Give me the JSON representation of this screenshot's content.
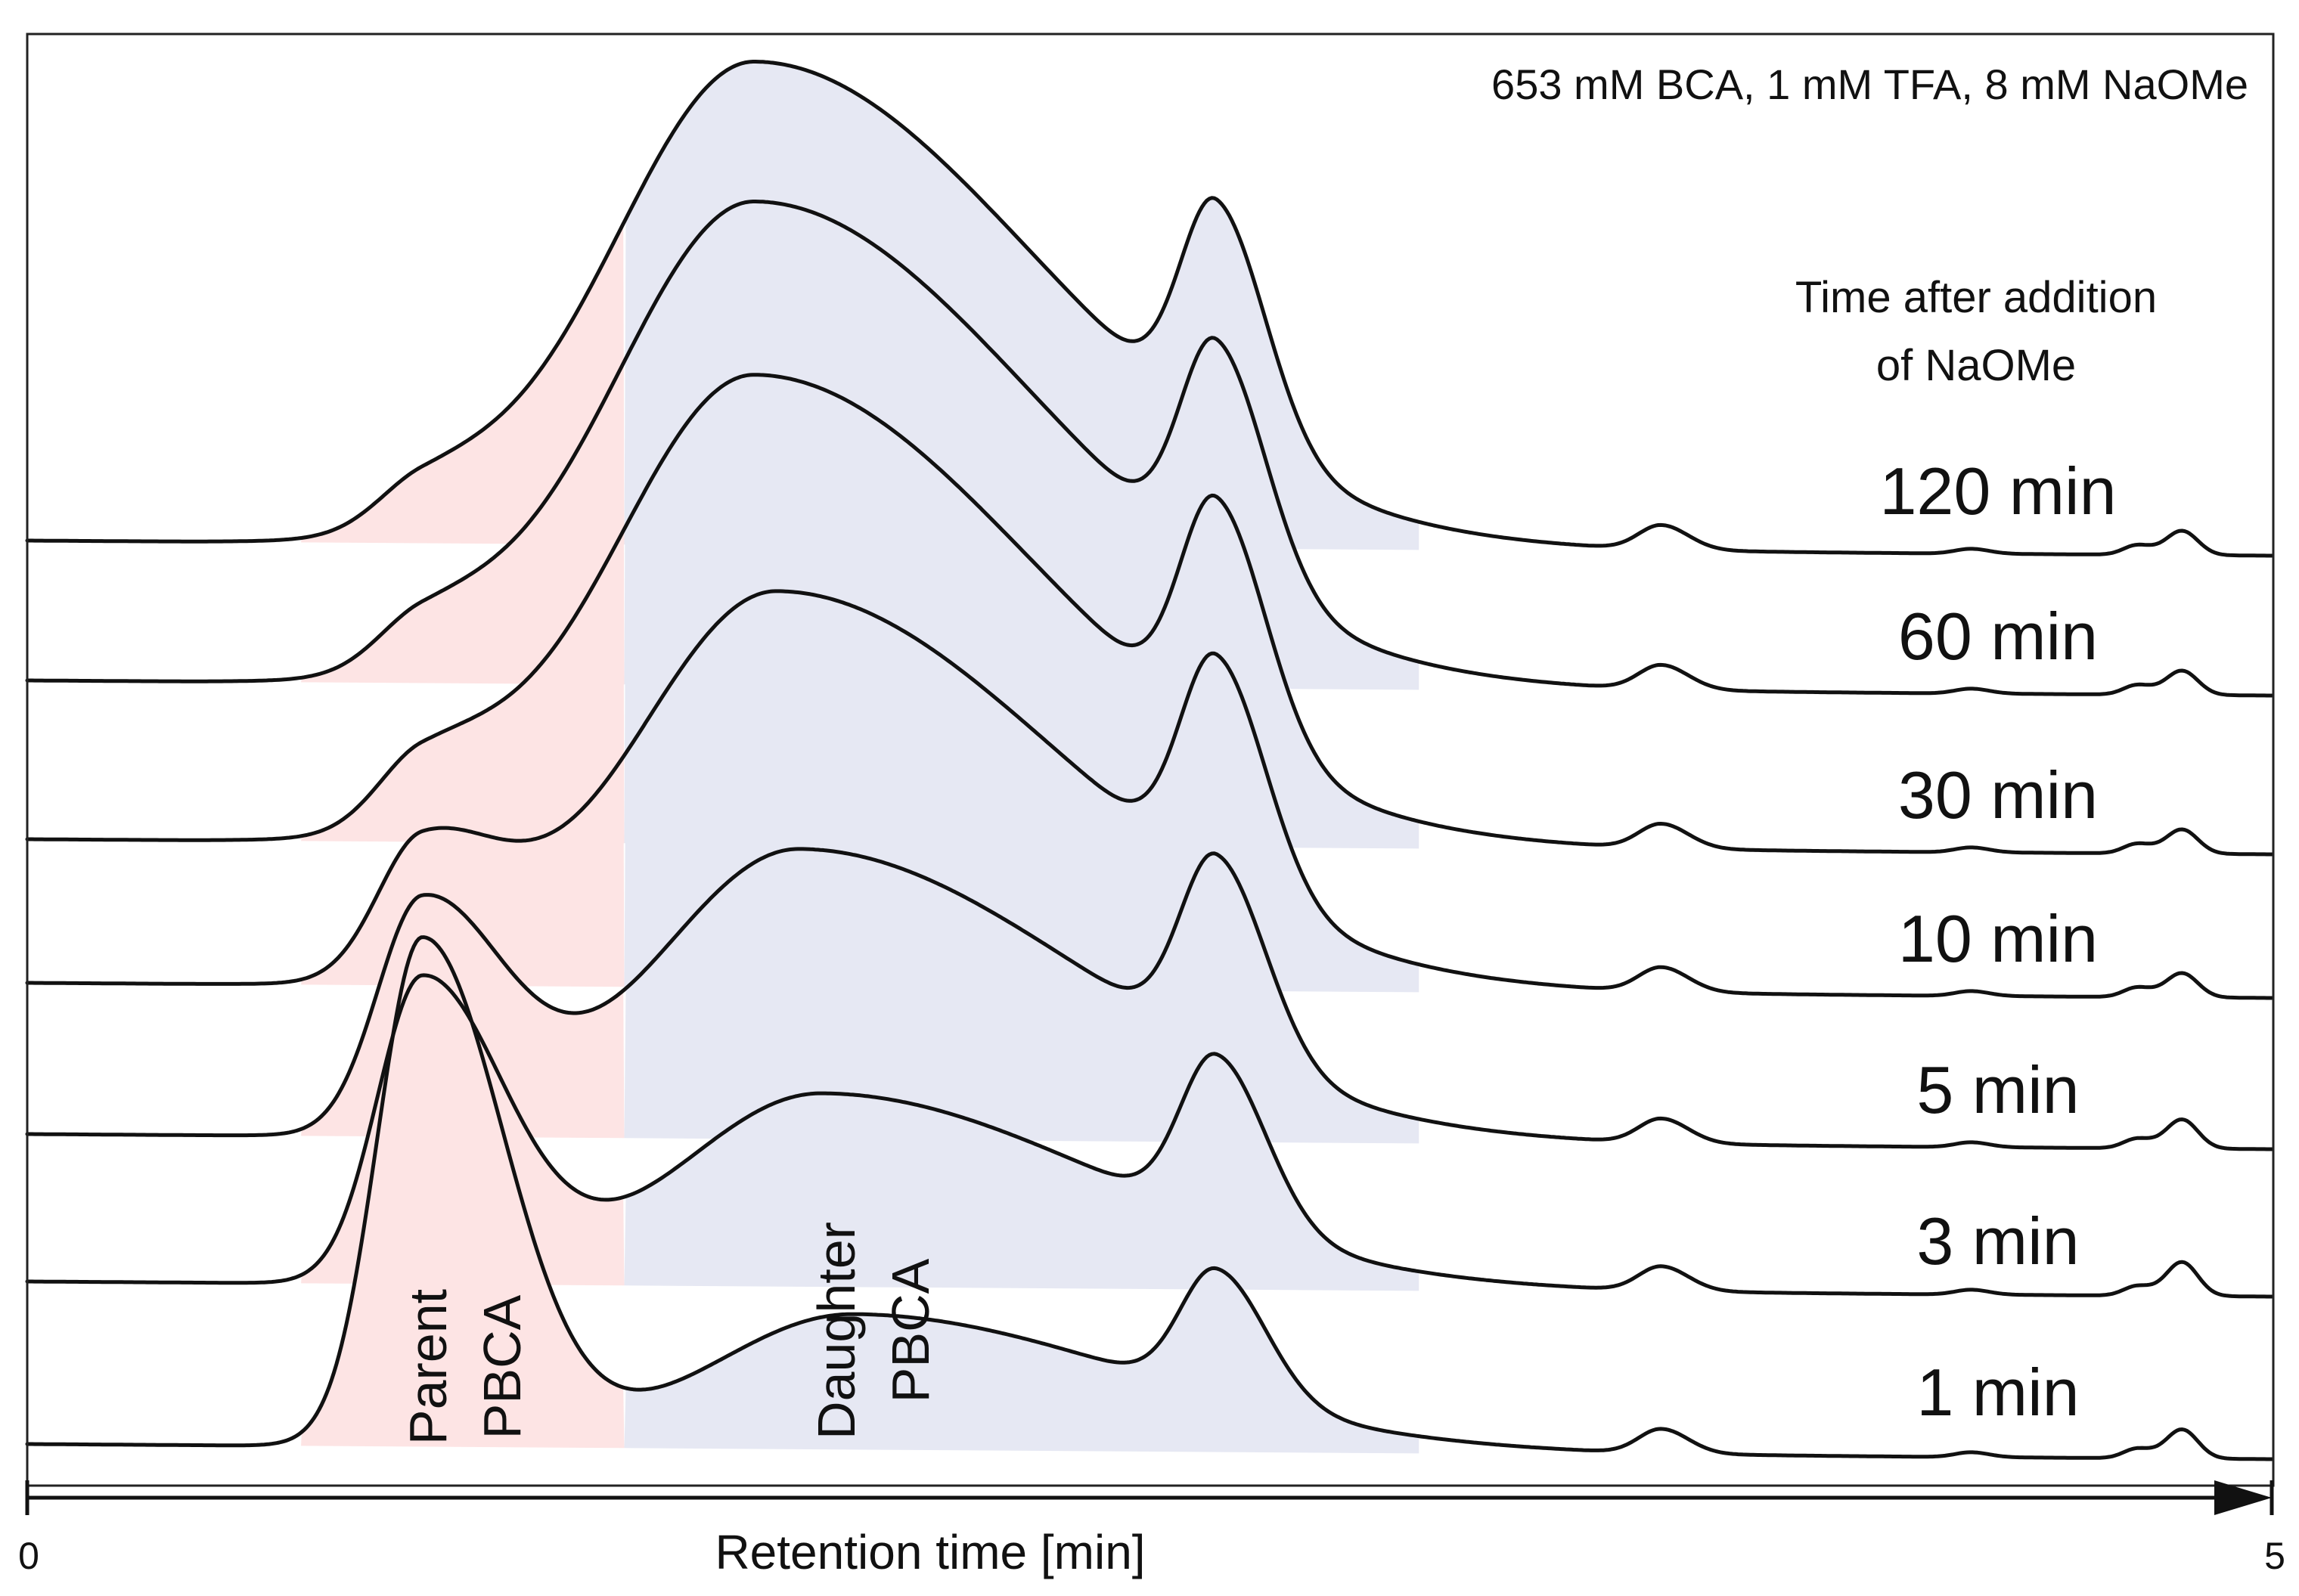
{
  "chart_data": {
    "type": "line",
    "title": "653 mM BCA, 1 mM TFA, 8 mM NaOMe",
    "xlabel": "Retention time [min]",
    "ylabel": "",
    "xlim": [
      0,
      5
    ],
    "x_ticks": [
      "0",
      "5"
    ],
    "legend_title": [
      "Time after addition",
      "of NaOMe"
    ],
    "region_labels": {
      "parent": [
        "Parent",
        "PBCA"
      ],
      "daughter": [
        "Daughter",
        "PBCA"
      ]
    },
    "colors": {
      "trace": "#111111",
      "parent_fill": "#fde4e4",
      "daughter_fill": "#e6e8f3",
      "background": "#ffffff"
    },
    "peak_model": {
      "x_units": "min",
      "y_units": "relative intensity (0-1, stacked offset traces)",
      "components": [
        {
          "name": "parent",
          "center": 0.88,
          "width_left": 0.1,
          "width_right": 0.18
        },
        {
          "name": "daughter",
          "center": 1.62,
          "width_left": 0.32,
          "width_right": 0.62
        },
        {
          "name": "shoulder",
          "center": 2.65,
          "width_left": 0.08,
          "width_right": 0.11
        },
        {
          "name": "small_a",
          "center": 3.64,
          "width_left": 0.05,
          "width_right": 0.06
        },
        {
          "name": "small_b",
          "center": 4.33,
          "width_left": 0.035,
          "width_right": 0.04
        },
        {
          "name": "small_c",
          "center": 4.7,
          "width_left": 0.03,
          "width_right": 0.035
        },
        {
          "name": "small_d",
          "center": 4.8,
          "width_left": 0.035,
          "width_right": 0.035
        }
      ]
    },
    "series": [
      {
        "name": "120 min",
        "label": "120 min",
        "parent": 0.09,
        "daughter": 1.0,
        "daughter_center": 1.62,
        "shoulder": 0.47,
        "small_a": 0.05,
        "small_b": 0.01,
        "small_c": 0.02,
        "small_d": 0.05
      },
      {
        "name": "60 min",
        "label": "60 min",
        "parent": 0.1,
        "daughter": 1.0,
        "daughter_center": 1.62,
        "shoulder": 0.47,
        "small_a": 0.05,
        "small_b": 0.01,
        "small_c": 0.02,
        "small_d": 0.05
      },
      {
        "name": "30 min",
        "label": "30 min",
        "parent": 0.14,
        "daughter": 0.97,
        "daughter_center": 1.62,
        "shoulder": 0.48,
        "small_a": 0.05,
        "small_b": 0.01,
        "small_c": 0.02,
        "small_d": 0.05
      },
      {
        "name": "10 min",
        "label": "10 min",
        "parent": 0.28,
        "daughter": 0.82,
        "daughter_center": 1.67,
        "shoulder": 0.46,
        "small_a": 0.05,
        "small_b": 0.01,
        "small_c": 0.02,
        "small_d": 0.05
      },
      {
        "name": "5 min",
        "label": "5 min",
        "parent": 0.48,
        "daughter": 0.6,
        "daughter_center": 1.72,
        "shoulder": 0.4,
        "small_a": 0.05,
        "small_b": 0.01,
        "small_c": 0.02,
        "small_d": 0.06
      },
      {
        "name": "3 min",
        "label": "3 min",
        "parent": 0.63,
        "daughter": 0.4,
        "daughter_center": 1.77,
        "shoulder": 0.34,
        "small_a": 0.05,
        "small_b": 0.01,
        "small_c": 0.02,
        "small_d": 0.07
      },
      {
        "name": "1 min",
        "label": "1 min",
        "parent": 1.05,
        "daughter": 0.28,
        "daughter_center": 1.84,
        "shoulder": 0.26,
        "small_a": 0.05,
        "small_b": 0.01,
        "small_c": 0.02,
        "small_d": 0.06
      }
    ]
  }
}
